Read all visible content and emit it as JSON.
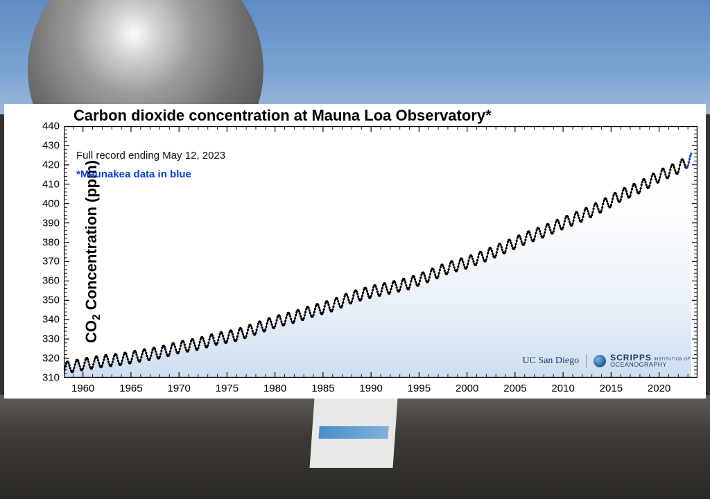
{
  "background": {
    "sky_gradient": [
      "#5f8bc4",
      "#7aa3d2",
      "#9bb9db"
    ],
    "ground_gradient": [
      "#5f5c58",
      "#3d3a37",
      "#2a2825"
    ],
    "dome_color": "#9c9c9c"
  },
  "chart": {
    "type": "line-scatter",
    "title": "Carbon dioxide concentration at Mauna Loa Observatory*",
    "title_fontsize": 22,
    "y_axis_label_html": "CO<sub>2</sub> Concentration (ppm)",
    "y_axis_label_fontsize": 22,
    "subtitle": "Full record ending May 12, 2023",
    "note": "*Maunakea data in blue",
    "note_color": "#0b3fd1",
    "background_color": "#ffffff",
    "plot_fill_gradient_top": "#ffffff",
    "plot_fill_gradient_bottom": "#c8d9ef",
    "series_color": "#000000",
    "series_color_secondary": "#0b3fd1",
    "marker_radius": 1.6,
    "line_width": 1.2,
    "seasonal_amplitude_ppm": 3.0,
    "xlim": [
      1958,
      2024
    ],
    "ylim": [
      310,
      440
    ],
    "ytick_step": 10,
    "xtick_step": 5,
    "x_ticks": [
      1960,
      1965,
      1970,
      1975,
      1980,
      1985,
      1990,
      1995,
      2000,
      2005,
      2010,
      2015,
      2020
    ],
    "y_ticks": [
      310,
      320,
      330,
      340,
      350,
      360,
      370,
      380,
      390,
      400,
      410,
      420,
      430,
      440
    ],
    "annual_mean": [
      {
        "year": 1958,
        "ppm": 315.0
      },
      {
        "year": 1960,
        "ppm": 316.9
      },
      {
        "year": 1962,
        "ppm": 318.5
      },
      {
        "year": 1964,
        "ppm": 319.6
      },
      {
        "year": 1966,
        "ppm": 321.4
      },
      {
        "year": 1968,
        "ppm": 323.0
      },
      {
        "year": 1970,
        "ppm": 325.7
      },
      {
        "year": 1972,
        "ppm": 327.5
      },
      {
        "year": 1974,
        "ppm": 330.2
      },
      {
        "year": 1976,
        "ppm": 332.0
      },
      {
        "year": 1978,
        "ppm": 335.4
      },
      {
        "year": 1980,
        "ppm": 338.8
      },
      {
        "year": 1982,
        "ppm": 341.4
      },
      {
        "year": 1984,
        "ppm": 344.6
      },
      {
        "year": 1986,
        "ppm": 347.4
      },
      {
        "year": 1988,
        "ppm": 351.6
      },
      {
        "year": 1990,
        "ppm": 354.4
      },
      {
        "year": 1992,
        "ppm": 356.5
      },
      {
        "year": 1994,
        "ppm": 358.8
      },
      {
        "year": 1996,
        "ppm": 362.6
      },
      {
        "year": 1998,
        "ppm": 366.7
      },
      {
        "year": 2000,
        "ppm": 369.5
      },
      {
        "year": 2002,
        "ppm": 373.3
      },
      {
        "year": 2004,
        "ppm": 377.5
      },
      {
        "year": 2006,
        "ppm": 381.9
      },
      {
        "year": 2008,
        "ppm": 385.6
      },
      {
        "year": 2010,
        "ppm": 389.9
      },
      {
        "year": 2012,
        "ppm": 393.8
      },
      {
        "year": 2014,
        "ppm": 398.6
      },
      {
        "year": 2016,
        "ppm": 404.2
      },
      {
        "year": 2018,
        "ppm": 408.5
      },
      {
        "year": 2020,
        "ppm": 414.2
      },
      {
        "year": 2022,
        "ppm": 418.6
      },
      {
        "year": 2023.37,
        "ppm": 423.0
      }
    ],
    "secondary_span": {
      "start_year": 2022.9,
      "end_year": 2023.37
    },
    "tick_color": "#000000",
    "tick_length_major": 8,
    "tick_length_minor": 5,
    "axis_line_width": 1.4,
    "label_fontsize": 15
  },
  "attribution": {
    "left": "UC San Diego",
    "right_line1": "SCRIPPS",
    "right_line2": "INSTITUTION OF",
    "right_line3": "OCEANOGRAPHY",
    "color": "#1b3a5c"
  }
}
